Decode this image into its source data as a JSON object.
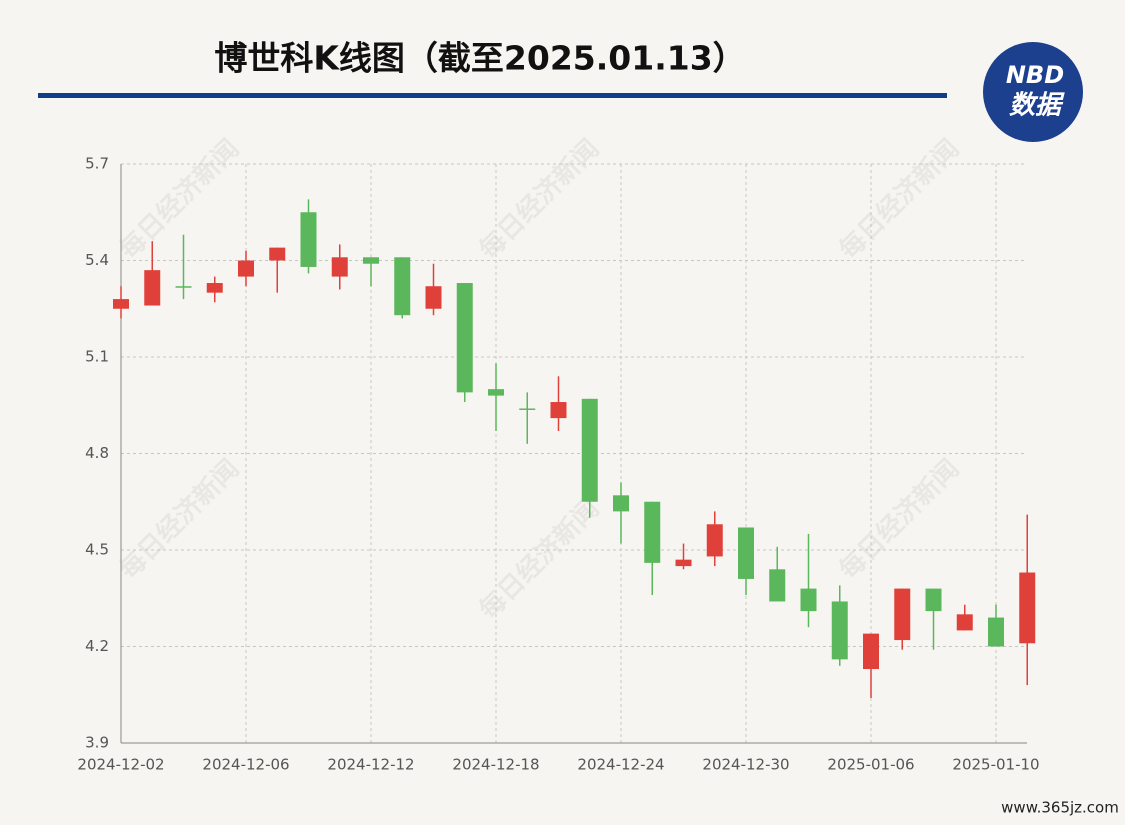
{
  "chart_data": {
    "type": "candlestick",
    "title": "博世科K线图（截至2025.01.13）",
    "logo": {
      "top": "NBD",
      "bottom": "数据"
    },
    "watermark": "每日经济新闻",
    "source": "www.365jz.com",
    "categories": [
      "2024-12-02",
      null,
      null,
      null,
      "2024-12-06",
      null,
      null,
      null,
      "2024-12-12",
      null,
      null,
      null,
      "2024-12-18",
      null,
      null,
      null,
      "2024-12-24",
      null,
      null,
      null,
      "2024-12-30",
      null,
      null,
      null,
      "2025-01-06",
      null,
      null,
      null,
      "2025-01-10",
      null
    ],
    "open": [
      5.25,
      5.26,
      5.32,
      5.3,
      5.35,
      5.4,
      5.55,
      5.35,
      5.41,
      5.41,
      5.25,
      5.33,
      5.0,
      4.94,
      4.91,
      4.97,
      4.67,
      4.65,
      4.45,
      4.48,
      4.57,
      4.44,
      4.38,
      4.34,
      4.13,
      4.22,
      4.38,
      4.25,
      4.29,
      4.21
    ],
    "high": [
      5.32,
      5.46,
      5.48,
      5.35,
      5.43,
      5.44,
      5.59,
      5.45,
      5.41,
      5.41,
      5.39,
      5.33,
      5.08,
      4.99,
      5.04,
      4.97,
      4.71,
      4.65,
      4.52,
      4.62,
      4.57,
      4.51,
      4.55,
      4.39,
      4.24,
      4.38,
      4.38,
      4.33,
      4.33,
      4.61
    ],
    "low": [
      5.22,
      5.26,
      5.28,
      5.27,
      5.32,
      5.3,
      5.36,
      5.31,
      5.32,
      5.22,
      5.23,
      4.96,
      4.87,
      4.83,
      4.87,
      4.6,
      4.52,
      4.36,
      4.44,
      4.45,
      4.36,
      4.34,
      4.26,
      4.14,
      4.04,
      4.19,
      4.19,
      4.25,
      4.2,
      4.08
    ],
    "close": [
      5.28,
      5.37,
      5.32,
      5.33,
      5.4,
      5.44,
      5.38,
      5.41,
      5.39,
      5.23,
      5.32,
      4.99,
      4.98,
      4.94,
      4.96,
      4.65,
      4.62,
      4.46,
      4.47,
      4.58,
      4.41,
      4.34,
      4.31,
      4.16,
      4.24,
      4.38,
      4.31,
      4.3,
      4.2,
      4.43
    ],
    "up_color": "#e0403a",
    "down_color": "#5bb75b",
    "ylim": [
      3.9,
      5.7
    ],
    "yticks": [
      3.9,
      4.2,
      4.5,
      4.8,
      5.1,
      5.4,
      5.7
    ],
    "grid": true
  }
}
